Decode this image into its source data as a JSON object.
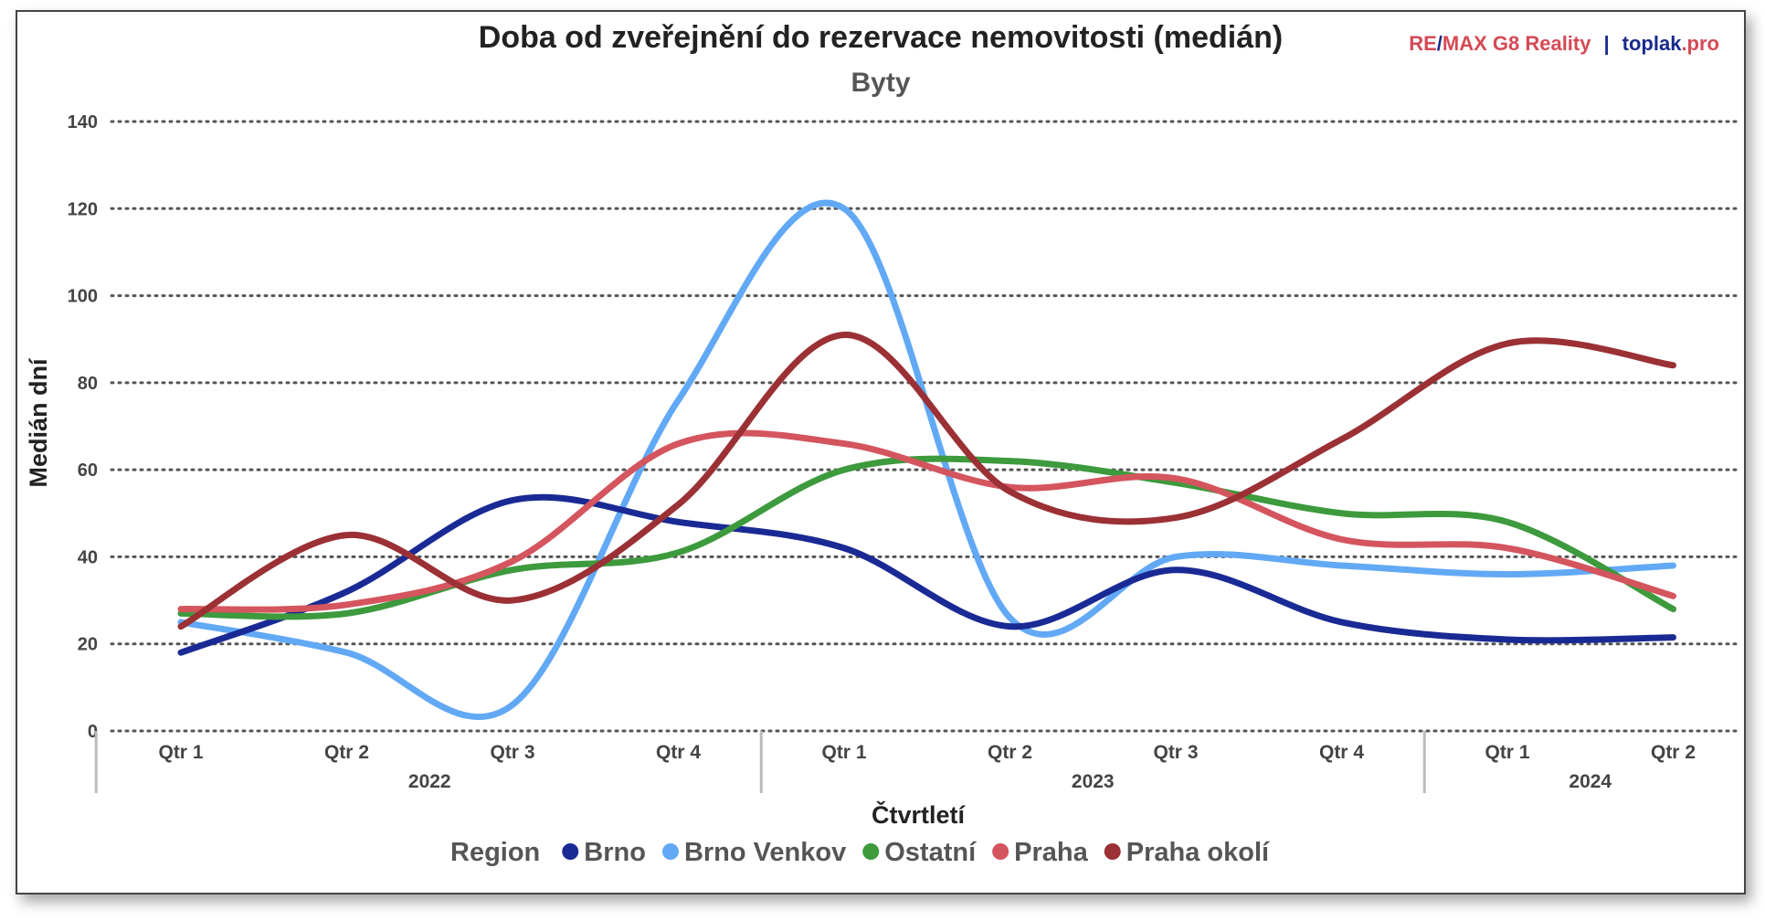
{
  "brand": {
    "remax_re": "RE",
    "remax_slash": "/",
    "remax_rest": "MAX G8 Reality",
    "separator": "|",
    "toplak_name": "toplak",
    "toplak_tld": ".pro",
    "remax_color": "#d44a55",
    "toplak_color": "#1a2a8c"
  },
  "chart_data": {
    "type": "line",
    "title": "Doba od zveřejnění do rezervace nemovitosti (medián)",
    "subtitle": "Byty",
    "xlabel": "Čtvrtletí",
    "ylabel": "Medián dní",
    "ylim": [
      0,
      140
    ],
    "yticks": [
      0,
      20,
      40,
      60,
      80,
      100,
      120,
      140
    ],
    "grid": true,
    "categories": [
      "Qtr 1",
      "Qtr 2",
      "Qtr 3",
      "Qtr 4",
      "Qtr 1",
      "Qtr 2",
      "Qtr 3",
      "Qtr 4",
      "Qtr 1",
      "Qtr 2"
    ],
    "year_groups": [
      {
        "label": "2022",
        "count": 4
      },
      {
        "label": "2023",
        "count": 4
      },
      {
        "label": "2024",
        "count": 2
      }
    ],
    "legend_title": "Region",
    "legend_position": "bottom",
    "series": [
      {
        "name": "Brno",
        "color": "#1a2a95",
        "values": [
          18,
          32,
          53,
          48,
          42,
          24,
          37,
          25,
          21,
          21.5
        ]
      },
      {
        "name": "Brno Venkov",
        "color": "#62a9f5",
        "values": [
          25,
          18,
          6,
          76,
          120,
          26,
          40,
          38,
          36,
          38
        ]
      },
      {
        "name": "Ostatní",
        "color": "#3d9a3d",
        "values": [
          27,
          27,
          37,
          41,
          60,
          62,
          57,
          50,
          48,
          28
        ]
      },
      {
        "name": "Praha",
        "color": "#d4555e",
        "values": [
          28,
          29,
          39,
          66,
          66,
          56,
          58,
          44,
          42,
          31
        ]
      },
      {
        "name": "Praha okolí",
        "color": "#9b3035",
        "values": [
          24,
          45,
          30,
          52,
          91,
          55,
          49,
          67,
          89,
          84
        ]
      }
    ]
  }
}
